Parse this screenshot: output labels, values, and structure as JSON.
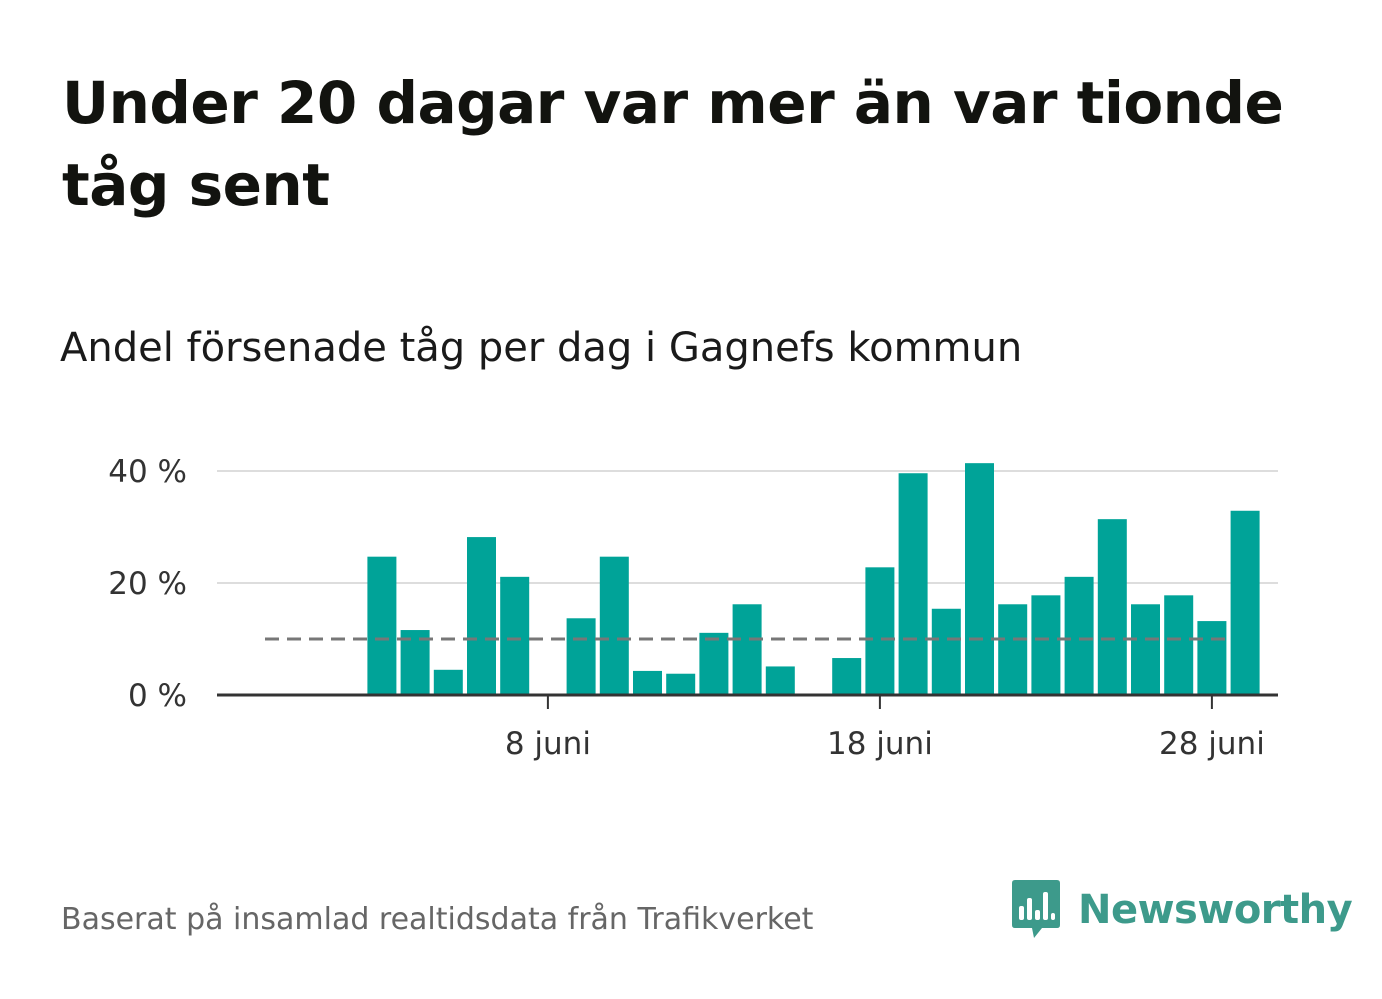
{
  "title": "Under 20 dagar var mer än var tionde tåg sent",
  "subtitle": "Andel försenade tåg per dag i Gagnefs kommun",
  "source": "Baserat på insamlad realtidsdata från Trafikverket",
  "brand": {
    "name": "Newsworthy",
    "icon": "newsworthy-logo-icon",
    "color": "#3d9a8b"
  },
  "colors": {
    "bar": "#00a398",
    "grid": "#dddddd",
    "axis": "#333333",
    "reference_line": "#777777"
  },
  "chart_data": {
    "type": "bar",
    "x": [
      "2021-06-01",
      "2021-06-02",
      "2021-06-03",
      "2021-06-04",
      "2021-06-05",
      "2021-06-06",
      "2021-06-07",
      "2021-06-08",
      "2021-06-09",
      "2021-06-10",
      "2021-06-11",
      "2021-06-12",
      "2021-06-13",
      "2021-06-14",
      "2021-06-15",
      "2021-06-16",
      "2021-06-17",
      "2021-06-18",
      "2021-06-19",
      "2021-06-20",
      "2021-06-21",
      "2021-06-22",
      "2021-06-23",
      "2021-06-24",
      "2021-06-25",
      "2021-06-26",
      "2021-06-27",
      "2021-06-28",
      "2021-06-29",
      "2021-06-30"
    ],
    "values": [
      null,
      null,
      24.7,
      11.6,
      4.5,
      28.2,
      21.1,
      null,
      13.7,
      24.7,
      4.3,
      3.8,
      11.1,
      16.2,
      5.1,
      null,
      6.6,
      22.8,
      39.6,
      15.4,
      41.4,
      16.2,
      17.8,
      21.1,
      31.4,
      16.2,
      17.8,
      13.2,
      32.9,
      null
    ],
    "unit": "%",
    "ylim": [
      0,
      44
    ],
    "y_ticks": [
      0,
      20,
      40
    ],
    "y_tick_labels": [
      "0 %",
      "20 %",
      "40 %"
    ],
    "x_ticks": [
      "2021-06-08",
      "2021-06-18",
      "2021-06-28"
    ],
    "x_tick_labels": [
      "8 juni",
      "18 juni",
      "28 juni"
    ],
    "reference_line": {
      "value": 10,
      "style": "dashed"
    },
    "grid": true,
    "legend": "none"
  }
}
